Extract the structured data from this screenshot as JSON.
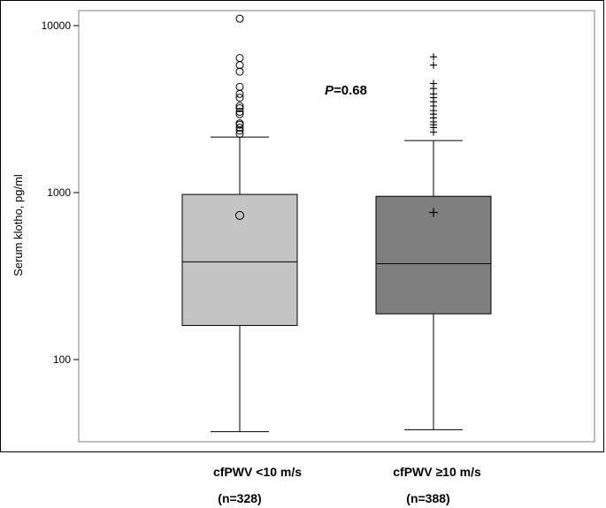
{
  "chart_data": {
    "type": "boxplot",
    "ylabel": "Serum klotho, pg/ml",
    "yscale": "log",
    "ylim": [
      35,
      12500
    ],
    "yticks": [
      100,
      1000,
      10000
    ],
    "ytick_labels": [
      "100",
      "1000",
      "10000"
    ],
    "annotation": {
      "italic": "P",
      "text": "=0.68"
    },
    "categories": [
      {
        "label": "cfPWV <10 m/s",
        "n": "(n=328)"
      },
      {
        "label": "cfPWV ≥10 m/s",
        "n": "(n=388)"
      }
    ],
    "boxes": [
      {
        "whisker_low": 37,
        "q1": 160,
        "median": 385,
        "q3": 975,
        "whisker_high": 2150,
        "mean": 730,
        "marker": "circle",
        "fill": "#c4c4c4",
        "outliers": [
          2250,
          2350,
          2450,
          2550,
          2600,
          2950,
          3050,
          3200,
          3300,
          3700,
          3900,
          4300,
          5300,
          5800,
          6400,
          11000
        ]
      },
      {
        "whisker_low": 38,
        "q1": 188,
        "median": 375,
        "q3": 950,
        "whisker_high": 2050,
        "mean": 760,
        "marker": "plus",
        "fill": "#7f7f7f",
        "outliers": [
          2300,
          2450,
          2550,
          2650,
          2800,
          2950,
          3100,
          3300,
          3500,
          3700,
          3900,
          4200,
          4500,
          5800,
          6500
        ]
      }
    ]
  }
}
